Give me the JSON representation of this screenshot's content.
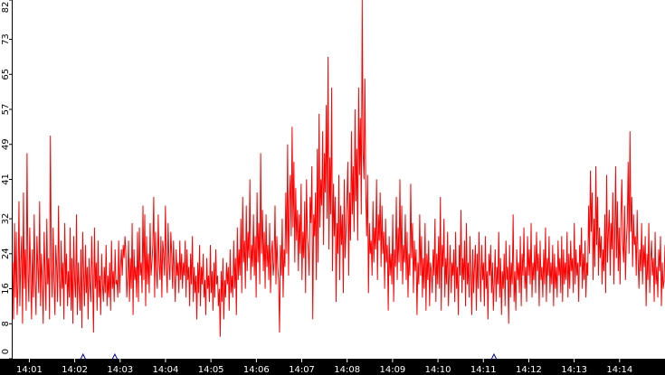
{
  "chart_data": {
    "type": "line",
    "title": "",
    "xlabel": "",
    "ylabel": "",
    "ylim": [
      0,
      82
    ],
    "yticks": [
      0,
      8,
      16,
      24,
      32,
      41,
      49,
      57,
      65,
      73,
      82
    ],
    "xticks": [
      "14:01",
      "14:02",
      "14:03",
      "14:04",
      "14:05",
      "14:06",
      "14:07",
      "14:08",
      "14:09",
      "14:10",
      "14:11",
      "14:12",
      "14:13",
      "14:14"
    ],
    "x_range_minutes": [
      "14:00:38",
      "14:15:00"
    ],
    "grid": false,
    "legend": "none",
    "colors": {
      "series": "#ff0000",
      "axis_band": "#000000",
      "markers": "#0000aa",
      "background": "#ffffff"
    },
    "markers_at": [
      "14:02:11",
      "14:02:53",
      "14:11:14"
    ],
    "series": [
      {
        "values": [
          22,
          9,
          31,
          14,
          29,
          10,
          17,
          36,
          12,
          22,
          28,
          8,
          38,
          16,
          25,
          11,
          47,
          20,
          13,
          30,
          19,
          9,
          25,
          14,
          33,
          18,
          10,
          28,
          21,
          15,
          36,
          12,
          24,
          18,
          8,
          29,
          20,
          11,
          32,
          17,
          23,
          9,
          51,
          22,
          14,
          30,
          18,
          10,
          26,
          21,
          13,
          35,
          19,
          12,
          27,
          16,
          22,
          9,
          31,
          17,
          24,
          12,
          20,
          14,
          30,
          11,
          23,
          8,
          28,
          18,
          14,
          33,
          10,
          22,
          16,
          11,
          25,
          7,
          29,
          19,
          12,
          26,
          15,
          21,
          9,
          23,
          17,
          13,
          28,
          18,
          6,
          30,
          16,
          22,
          11,
          27,
          14,
          19,
          10,
          24,
          17,
          13,
          21,
          15,
          26,
          12,
          19,
          14,
          22,
          11,
          27,
          16,
          20,
          13,
          25,
          17,
          18,
          14,
          27,
          15,
          21,
          25,
          19,
          26,
          23,
          28,
          24,
          14,
          19,
          27,
          13,
          23,
          16,
          31,
          10,
          25,
          18,
          21,
          14,
          29,
          13,
          30,
          19,
          22,
          15,
          35,
          18,
          33,
          12,
          28,
          17,
          24,
          15,
          31,
          19,
          22,
          26,
          37,
          14,
          29,
          20,
          16,
          33,
          22,
          18,
          28,
          14,
          27,
          24,
          19,
          35,
          21,
          15,
          31,
          22,
          18,
          29,
          24,
          16,
          27,
          20,
          13,
          25,
          19,
          22,
          15,
          27,
          18,
          24,
          16,
          22,
          19,
          27,
          14,
          25,
          18,
          21,
          12,
          24,
          17,
          28,
          13,
          21,
          15,
          19,
          9,
          22,
          15,
          26,
          12,
          21,
          17,
          24,
          14,
          18,
          10,
          23,
          16,
          19,
          13,
          26,
          15,
          20,
          11,
          22,
          14,
          25,
          17,
          19,
          12,
          16,
          5,
          20,
          13,
          23,
          9,
          18,
          14,
          22,
          17,
          21,
          11,
          25,
          15,
          19,
          14,
          27,
          16,
          23,
          10,
          30,
          18,
          25,
          19,
          32,
          15,
          37,
          22,
          27,
          16,
          35,
          20,
          29,
          23,
          41,
          18,
          26,
          21,
          33,
          19,
          28,
          14,
          38,
          22,
          31,
          17,
          47,
          24,
          34,
          20,
          29,
          16,
          33,
          21,
          26,
          18,
          31,
          15,
          24,
          27,
          19,
          22,
          35,
          17,
          28,
          21,
          18,
          6,
          26,
          19,
          32,
          14,
          25,
          21,
          38,
          24,
          49,
          19,
          36,
          42,
          28,
          53,
          30,
          45,
          22,
          39,
          27,
          34,
          20,
          33,
          24,
          40,
          18,
          29,
          23,
          36,
          15,
          41,
          28,
          25,
          19,
          37,
          31,
          44,
          9,
          33,
          28,
          38,
          18,
          48,
          22,
          56,
          30,
          41,
          35,
          52,
          26,
          47,
          38,
          58,
          32,
          69,
          25,
          46,
          33,
          62,
          20,
          40,
          28,
          37,
          13,
          31,
          24,
          42,
          18,
          35,
          26,
          33,
          15,
          41,
          23,
          29,
          36,
          45,
          19,
          38,
          27,
          52,
          33,
          44,
          29,
          57,
          36,
          48,
          27,
          62,
          42,
          55,
          33,
          86,
          47,
          41,
          64,
          38,
          28,
          42,
          15,
          31,
          24,
          27,
          19,
          36,
          22,
          30,
          25,
          41,
          18,
          33,
          27,
          38,
          21,
          35,
          24,
          29,
          16,
          32,
          22,
          26,
          11,
          28,
          19,
          24,
          17,
          33,
          13,
          25,
          21,
          37,
          18,
          30,
          22,
          41,
          20,
          35,
          17,
          26,
          22,
          33,
          18,
          29,
          14,
          24,
          19,
          40,
          23,
          31,
          15,
          27,
          20,
          25,
          10,
          22,
          17,
          33,
          19,
          28,
          14,
          23,
          16,
          31,
          11,
          24,
          18,
          27,
          12,
          22,
          20,
          15,
          25,
          19,
          32,
          13,
          24,
          17,
          28,
          16,
          37,
          11,
          26,
          21,
          32,
          14,
          23,
          17,
          29,
          12,
          20,
          26,
          15,
          22,
          19,
          25,
          13,
          29,
          16,
          21,
          10,
          26,
          19,
          34,
          15,
          23,
          18,
          27,
          12,
          31,
          17,
          22,
          14,
          28,
          19,
          10,
          25,
          15,
          21,
          26,
          11,
          24,
          16,
          29,
          20,
          13,
          26,
          18,
          22,
          12,
          28,
          16,
          20,
          9,
          24,
          19,
          26,
          15,
          22,
          11,
          18,
          25,
          13,
          21,
          17,
          29,
          14,
          23,
          10,
          20,
          16,
          24,
          12,
          27,
          18,
          21,
          8,
          26,
          14,
          22,
          17,
          33,
          13,
          20,
          11,
          25,
          18,
          22,
          15,
          28,
          12,
          24,
          19,
          30,
          16,
          21,
          13,
          28,
          19,
          25,
          17,
          31,
          14,
          22,
          18,
          26,
          15,
          29,
          20,
          24,
          12,
          27,
          18,
          21,
          14,
          25,
          17,
          30,
          13,
          23,
          19,
          28,
          15,
          22,
          17,
          26,
          12,
          24,
          16,
          21,
          14,
          27,
          19,
          23,
          15,
          28,
          13,
          25,
          17,
          22,
          18,
          29,
          14,
          24,
          16,
          27,
          20,
          23,
          15,
          31,
          17,
          25,
          19,
          22,
          13,
          26,
          21,
          30,
          16,
          24,
          18,
          27,
          14,
          22,
          19,
          35,
          24,
          43,
          29,
          38,
          18,
          32,
          21,
          44,
          26,
          37,
          19,
          30,
          23,
          28,
          17,
          25,
          20,
          33,
          15,
          42,
          22,
          29,
          34,
          19,
          31,
          25,
          38,
          17,
          27,
          44,
          23,
          36,
          20,
          30,
          17,
          33,
          41,
          26,
          22,
          35,
          18,
          27,
          31,
          45,
          24,
          52,
          29,
          37,
          21,
          33,
          26,
          28,
          19,
          34,
          23,
          16,
          25,
          20,
          31,
          17,
          26,
          21,
          28,
          12,
          24,
          18,
          31,
          15,
          22,
          27,
          19,
          23,
          13,
          29,
          17,
          21,
          14,
          25,
          20,
          28,
          12,
          22,
          16,
          18,
          26
        ]
      }
    ]
  }
}
